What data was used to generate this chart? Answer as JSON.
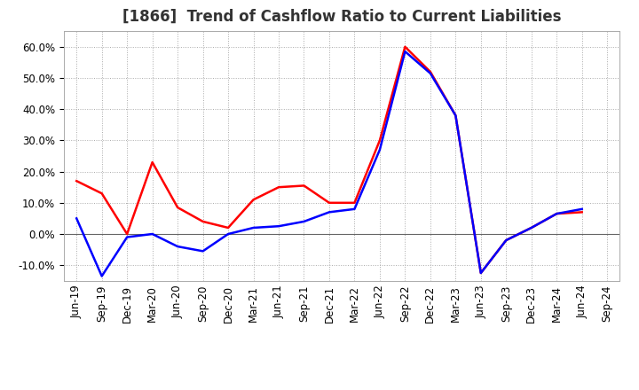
{
  "title": "[1866]  Trend of Cashflow Ratio to Current Liabilities",
  "x_labels": [
    "Jun-19",
    "Sep-19",
    "Dec-19",
    "Mar-20",
    "Jun-20",
    "Sep-20",
    "Dec-20",
    "Mar-21",
    "Jun-21",
    "Sep-21",
    "Dec-21",
    "Mar-22",
    "Jun-22",
    "Sep-22",
    "Dec-22",
    "Mar-23",
    "Jun-23",
    "Sep-23",
    "Dec-23",
    "Mar-24",
    "Jun-24",
    "Sep-24"
  ],
  "operating_cf": [
    0.17,
    0.13,
    0.0,
    0.23,
    0.085,
    0.04,
    0.02,
    0.11,
    0.15,
    0.155,
    0.1,
    0.1,
    0.3,
    0.6,
    0.52,
    0.38,
    -0.125,
    -0.02,
    0.02,
    0.065,
    0.07,
    null
  ],
  "free_cf": [
    0.05,
    -0.135,
    -0.01,
    0.0,
    -0.04,
    -0.055,
    0.0,
    0.02,
    0.025,
    0.04,
    0.07,
    0.08,
    0.27,
    0.585,
    0.515,
    0.38,
    -0.125,
    -0.02,
    0.02,
    0.065,
    0.08,
    null
  ],
  "operating_color": "#ff0000",
  "free_color": "#0000ff",
  "ylim": [
    -0.15,
    0.65
  ],
  "yticks": [
    -0.1,
    0.0,
    0.1,
    0.2,
    0.3,
    0.4,
    0.5,
    0.6
  ],
  "background_color": "#ffffff",
  "grid_color": "#aaaaaa",
  "title_fontsize": 12,
  "legend_fontsize": 10,
  "tick_fontsize": 8.5
}
